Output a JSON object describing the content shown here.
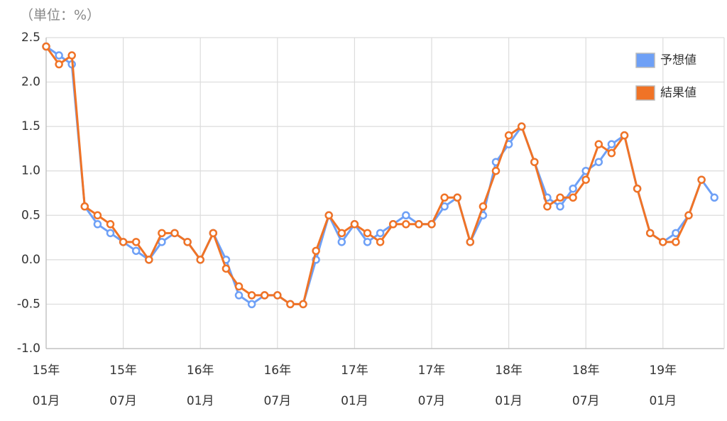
{
  "chart_data": {
    "type": "line",
    "y_axis_label": "（単位：%）",
    "categories": [
      [
        "15年",
        "01月"
      ],
      null,
      null,
      null,
      null,
      null,
      [
        "15年",
        "07月"
      ],
      null,
      null,
      null,
      null,
      null,
      [
        "16年",
        "01月"
      ],
      null,
      null,
      null,
      null,
      null,
      [
        "16年",
        "07月"
      ],
      null,
      null,
      null,
      null,
      null,
      [
        "17年",
        "01月"
      ],
      null,
      null,
      null,
      null,
      null,
      [
        "17年",
        "07月"
      ],
      null,
      null,
      null,
      null,
      null,
      [
        "18年",
        "01月"
      ],
      null,
      null,
      null,
      null,
      null,
      [
        "18年",
        "07月"
      ],
      null,
      null,
      null,
      null,
      null,
      [
        "19年",
        "01月"
      ],
      null,
      null,
      null,
      null
    ],
    "series": [
      {
        "name": "予想値",
        "color": "#6ea0f6",
        "values": [
          2.4,
          2.3,
          2.2,
          0.6,
          0.4,
          0.3,
          0.2,
          0.1,
          0.0,
          0.2,
          0.3,
          0.2,
          0.0,
          0.3,
          0.0,
          -0.4,
          -0.5,
          -0.4,
          -0.4,
          -0.5,
          -0.5,
          0.0,
          0.5,
          0.2,
          0.4,
          0.2,
          0.3,
          0.4,
          0.5,
          0.4,
          0.4,
          0.6,
          0.7,
          0.2,
          0.5,
          1.1,
          1.3,
          1.5,
          1.1,
          0.7,
          0.6,
          0.8,
          1.0,
          1.1,
          1.3,
          1.4,
          0.8,
          0.3,
          0.2,
          0.3,
          0.5,
          0.9,
          0.7
        ]
      },
      {
        "name": "結果値",
        "color": "#f07326",
        "values": [
          2.4,
          2.2,
          2.3,
          0.6,
          0.5,
          0.4,
          0.2,
          0.2,
          0.0,
          0.3,
          0.3,
          0.2,
          0.0,
          0.3,
          -0.1,
          -0.3,
          -0.4,
          -0.4,
          -0.4,
          -0.5,
          -0.5,
          0.1,
          0.5,
          0.3,
          0.4,
          0.3,
          0.2,
          0.4,
          0.4,
          0.4,
          0.4,
          0.7,
          0.7,
          0.2,
          0.6,
          1.0,
          1.4,
          1.5,
          1.1,
          0.6,
          0.7,
          0.7,
          0.9,
          1.3,
          1.2,
          1.4,
          0.8,
          0.3,
          0.2,
          0.2,
          0.5,
          0.9,
          null
        ]
      }
    ],
    "ylim": [
      -1.0,
      2.5
    ],
    "yticks": [
      {
        "value": -1.0,
        "label": "-1.0"
      },
      -0.5,
      {
        "value": 0.0,
        "label": "0.0"
      },
      0.5,
      {
        "value": 1.0,
        "label": "1.0"
      },
      1.5,
      {
        "value": 2.0,
        "label": "2.0"
      },
      2.5
    ],
    "grid": true,
    "legend": "top-right"
  }
}
